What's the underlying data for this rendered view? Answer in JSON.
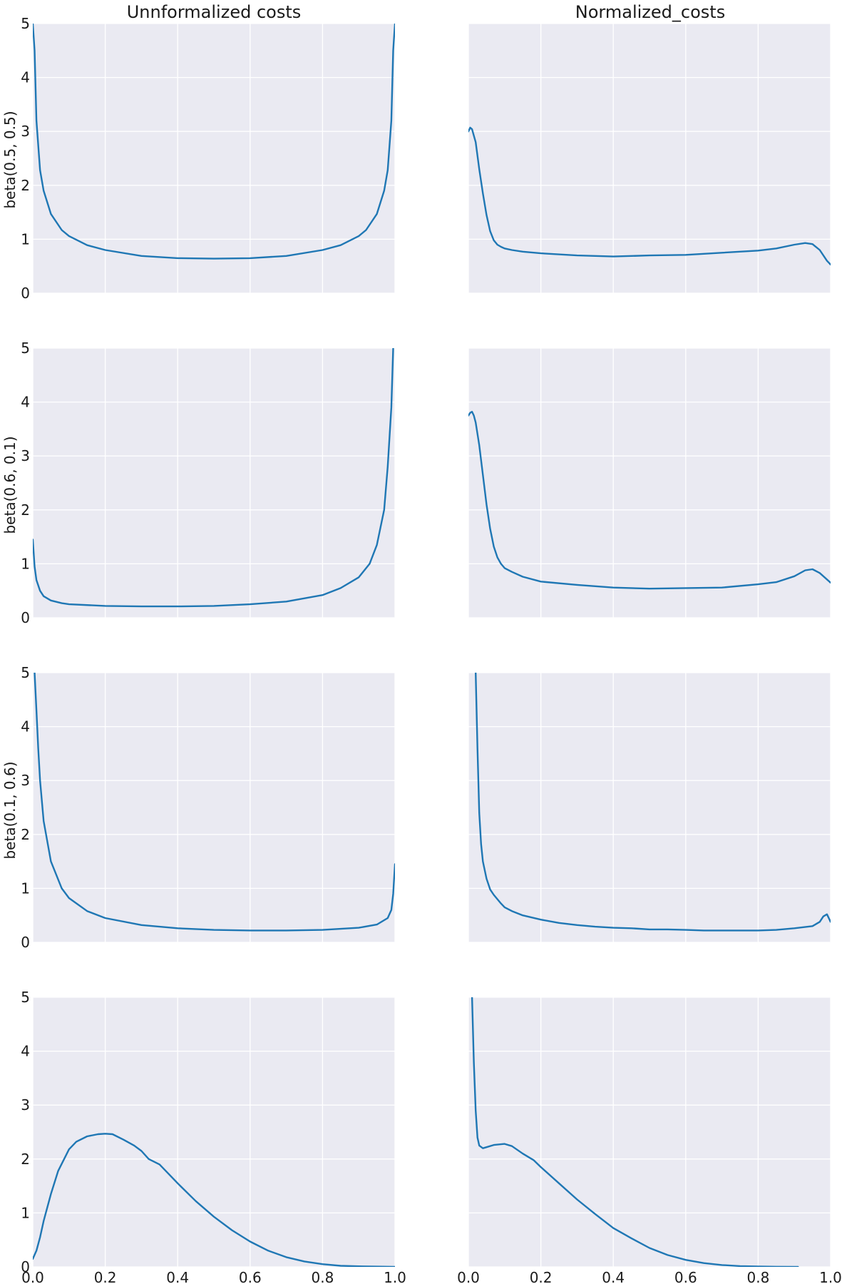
{
  "chart_data": {
    "type": "line",
    "layout": "grid 4 rows x 2 columns, shared x axis (bottom row only), shared y axis (left column only)",
    "columns": [
      "Unnformalized costs",
      "Normalized_costs"
    ],
    "rows": [
      "beta(0.5, 0.5)",
      "beta(0.6, 0.1)",
      "beta(0.1, 0.6)",
      ""
    ],
    "xlim": [
      0,
      1
    ],
    "ylim": [
      0,
      5
    ],
    "x_ticks": [
      "0.0",
      "0.2",
      "0.4",
      "0.6",
      "0.8",
      "1.0"
    ],
    "y_ticks": [
      "0",
      "1",
      "2",
      "3",
      "4",
      "5"
    ],
    "grid": true,
    "style": {
      "background": "#eaeaf2",
      "grid_color": "#ffffff",
      "line_color": "#1f77b4"
    },
    "panels": [
      {
        "row": 0,
        "col": 0,
        "series": [
          {
            "x": [
              0.0,
              0.005,
              0.01,
              0.02,
              0.03,
              0.05,
              0.08,
              0.1,
              0.15,
              0.2,
              0.3,
              0.4,
              0.5,
              0.6,
              0.7,
              0.8,
              0.85,
              0.9,
              0.92,
              0.95,
              0.97,
              0.98,
              0.99,
              0.995,
              1.0
            ],
            "y": [
              5.0,
              4.5,
              3.2,
              2.28,
              1.9,
              1.47,
              1.17,
              1.06,
              0.89,
              0.8,
              0.69,
              0.65,
              0.64,
              0.65,
              0.69,
              0.8,
              0.89,
              1.06,
              1.17,
              1.47,
              1.9,
              2.28,
              3.2,
              4.5,
              5.0
            ]
          }
        ]
      },
      {
        "row": 0,
        "col": 1,
        "series": [
          {
            "x": [
              0.0,
              0.005,
              0.01,
              0.02,
              0.03,
              0.04,
              0.05,
              0.06,
              0.07,
              0.08,
              0.09,
              0.1,
              0.12,
              0.15,
              0.2,
              0.3,
              0.4,
              0.5,
              0.6,
              0.7,
              0.8,
              0.85,
              0.9,
              0.93,
              0.95,
              0.97,
              0.99,
              1.0
            ],
            "y": [
              3.0,
              3.07,
              3.04,
              2.8,
              2.3,
              1.85,
              1.45,
              1.15,
              0.98,
              0.9,
              0.86,
              0.83,
              0.8,
              0.77,
              0.74,
              0.7,
              0.68,
              0.7,
              0.71,
              0.75,
              0.79,
              0.83,
              0.9,
              0.93,
              0.91,
              0.8,
              0.6,
              0.53
            ]
          }
        ]
      },
      {
        "row": 1,
        "col": 0,
        "series": [
          {
            "x": [
              0.0,
              0.005,
              0.01,
              0.02,
              0.03,
              0.05,
              0.08,
              0.1,
              0.2,
              0.3,
              0.4,
              0.5,
              0.6,
              0.7,
              0.8,
              0.85,
              0.9,
              0.93,
              0.95,
              0.97,
              0.98,
              0.99,
              0.995
            ],
            "y": [
              1.45,
              0.95,
              0.7,
              0.5,
              0.4,
              0.32,
              0.27,
              0.25,
              0.22,
              0.21,
              0.21,
              0.22,
              0.25,
              0.3,
              0.42,
              0.55,
              0.75,
              1.0,
              1.35,
              2.0,
              2.8,
              3.9,
              5.0
            ]
          }
        ]
      },
      {
        "row": 1,
        "col": 1,
        "series": [
          {
            "x": [
              0.0,
              0.005,
              0.01,
              0.015,
              0.02,
              0.03,
              0.04,
              0.05,
              0.06,
              0.07,
              0.08,
              0.09,
              0.1,
              0.12,
              0.15,
              0.2,
              0.3,
              0.4,
              0.5,
              0.6,
              0.7,
              0.8,
              0.85,
              0.9,
              0.93,
              0.95,
              0.97,
              1.0
            ],
            "y": [
              3.75,
              3.8,
              3.82,
              3.75,
              3.62,
              3.2,
              2.65,
              2.1,
              1.65,
              1.32,
              1.12,
              1.0,
              0.92,
              0.85,
              0.76,
              0.67,
              0.61,
              0.56,
              0.54,
              0.55,
              0.56,
              0.62,
              0.66,
              0.77,
              0.88,
              0.9,
              0.83,
              0.65
            ]
          }
        ]
      },
      {
        "row": 2,
        "col": 0,
        "series": [
          {
            "x": [
              0.005,
              0.01,
              0.015,
              0.02,
              0.03,
              0.05,
              0.08,
              0.1,
              0.15,
              0.2,
              0.3,
              0.4,
              0.5,
              0.6,
              0.7,
              0.8,
              0.9,
              0.95,
              0.98,
              0.99,
              0.995,
              1.0
            ],
            "y": [
              5.0,
              4.3,
              3.6,
              3.0,
              2.25,
              1.5,
              1.0,
              0.82,
              0.58,
              0.45,
              0.32,
              0.26,
              0.23,
              0.22,
              0.22,
              0.23,
              0.27,
              0.33,
              0.45,
              0.6,
              0.9,
              1.45
            ]
          }
        ]
      },
      {
        "row": 2,
        "col": 1,
        "series": [
          {
            "x": [
              0.02,
              0.025,
              0.03,
              0.035,
              0.04,
              0.05,
              0.06,
              0.07,
              0.08,
              0.09,
              0.1,
              0.12,
              0.15,
              0.2,
              0.25,
              0.3,
              0.35,
              0.4,
              0.45,
              0.5,
              0.55,
              0.6,
              0.65,
              0.7,
              0.75,
              0.8,
              0.85,
              0.9,
              0.95,
              0.97,
              0.98,
              0.99,
              1.0
            ],
            "y": [
              5.0,
              3.6,
              2.4,
              1.82,
              1.5,
              1.18,
              0.98,
              0.88,
              0.8,
              0.72,
              0.65,
              0.58,
              0.5,
              0.42,
              0.36,
              0.32,
              0.29,
              0.27,
              0.26,
              0.24,
              0.24,
              0.23,
              0.22,
              0.22,
              0.22,
              0.22,
              0.23,
              0.26,
              0.3,
              0.38,
              0.48,
              0.52,
              0.38
            ]
          }
        ]
      },
      {
        "row": 3,
        "col": 0,
        "series": [
          {
            "x": [
              0.0,
              0.01,
              0.02,
              0.03,
              0.05,
              0.07,
              0.1,
              0.12,
              0.15,
              0.18,
              0.2,
              0.22,
              0.25,
              0.28,
              0.3,
              0.32,
              0.35,
              0.4,
              0.45,
              0.5,
              0.55,
              0.6,
              0.65,
              0.7,
              0.75,
              0.8,
              0.85,
              0.9,
              0.95,
              1.0
            ],
            "y": [
              0.15,
              0.3,
              0.55,
              0.85,
              1.35,
              1.78,
              2.18,
              2.32,
              2.42,
              2.46,
              2.47,
              2.46,
              2.36,
              2.25,
              2.15,
              2.0,
              1.9,
              1.55,
              1.22,
              0.93,
              0.68,
              0.47,
              0.3,
              0.18,
              0.1,
              0.05,
              0.02,
              0.01,
              0.005,
              0.0
            ]
          }
        ]
      },
      {
        "row": 3,
        "col": 1,
        "series": [
          {
            "x": [
              0.01,
              0.015,
              0.02,
              0.025,
              0.03,
              0.04,
              0.05,
              0.07,
              0.1,
              0.12,
              0.15,
              0.18,
              0.2,
              0.25,
              0.3,
              0.35,
              0.4,
              0.45,
              0.5,
              0.55,
              0.6,
              0.65,
              0.7,
              0.75,
              0.8,
              0.85,
              0.9,
              0.91
            ],
            "y": [
              5.0,
              3.8,
              2.9,
              2.4,
              2.25,
              2.2,
              2.22,
              2.26,
              2.28,
              2.24,
              2.1,
              1.98,
              1.85,
              1.55,
              1.25,
              0.98,
              0.72,
              0.53,
              0.35,
              0.22,
              0.13,
              0.07,
              0.035,
              0.015,
              0.007,
              0.003,
              0.001,
              0.0
            ]
          }
        ]
      }
    ]
  }
}
